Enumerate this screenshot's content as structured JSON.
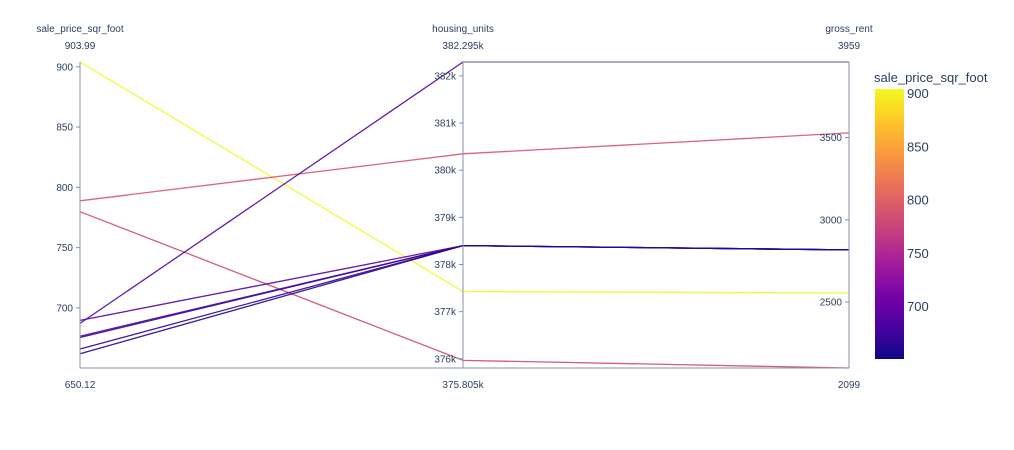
{
  "chart_data": {
    "type": "parallel_coordinates",
    "color_dimension": "sale_price_sqr_foot",
    "colorscale": [
      "#0d0887",
      "#46039f",
      "#7201a8",
      "#9c179e",
      "#bd3786",
      "#d8576b",
      "#ed7953",
      "#fb9f3a",
      "#fdca26",
      "#f0f921"
    ],
    "dimensions": [
      {
        "name": "sale_price_sqr_foot",
        "range": [
          650.12,
          903.99
        ],
        "range_labels": {
          "max": "903.99",
          "min": "650.12"
        },
        "ticks": [
          700,
          750,
          800,
          850,
          900
        ],
        "tick_labels": [
          "700",
          "750",
          "800",
          "850",
          "900"
        ]
      },
      {
        "name": "housing_units",
        "range": [
          375805,
          382295
        ],
        "range_labels": {
          "max": "382.295k",
          "min": "375.805k"
        },
        "ticks": [
          376000,
          377000,
          378000,
          379000,
          380000,
          381000,
          382000
        ],
        "tick_labels": [
          "376k",
          "377k",
          "378k",
          "379k",
          "380k",
          "381k",
          "382k"
        ]
      },
      {
        "name": "gross_rent",
        "range": [
          2099,
          3959
        ],
        "range_labels": {
          "max": "3959",
          "min": "2099"
        },
        "ticks": [
          2500,
          3000,
          3500
        ],
        "tick_labels": [
          "2500",
          "3000",
          "3500"
        ]
      }
    ],
    "lines": [
      {
        "sale_price_sqr_foot": 903.99,
        "housing_units": 377427,
        "gross_rent": 2555
      },
      {
        "sale_price_sqr_foot": 788.8,
        "housing_units": 380348,
        "gross_rent": 3528
      },
      {
        "sale_price_sqr_foot": 779.8,
        "housing_units": 375967,
        "gross_rent": 2099
      },
      {
        "sale_price_sqr_foot": 687.1,
        "housing_units": 382295,
        "gross_rent": 3959
      },
      {
        "sale_price_sqr_foot": 689.6,
        "housing_units": 378401,
        "gross_rent": 2817
      },
      {
        "sale_price_sqr_foot": 676.5,
        "housing_units": 378401,
        "gross_rent": 2817
      },
      {
        "sale_price_sqr_foot": 675.4,
        "housing_units": 378401,
        "gross_rent": 2817
      },
      {
        "sale_price_sqr_foot": 665.9,
        "housing_units": 378401,
        "gross_rent": 2817
      },
      {
        "sale_price_sqr_foot": 662.0,
        "housing_units": 378401,
        "gross_rent": 2817
      }
    ],
    "colorbar": {
      "title": "sale_price_sqr_foot",
      "range": [
        650.12,
        903.99
      ],
      "ticks": [
        700,
        750,
        800,
        850,
        900
      ],
      "tick_labels": [
        "700",
        "750",
        "800",
        "850",
        "900"
      ]
    }
  }
}
